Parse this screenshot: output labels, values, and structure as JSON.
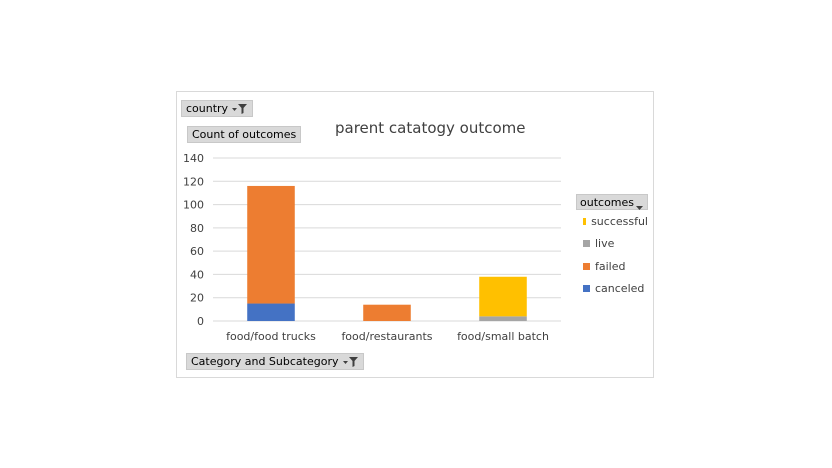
{
  "chart_data": {
    "type": "bar",
    "stacked": true,
    "title": "parent catatogy outcome",
    "xlabel": "",
    "ylabel": "",
    "categories": [
      "food/food trucks",
      "food/restaurants",
      "food/small batch"
    ],
    "ylim": [
      0,
      140
    ],
    "yticks": [
      0,
      20,
      40,
      60,
      80,
      100,
      120,
      140
    ],
    "grid": true,
    "legend_position": "right",
    "legend_title": "outcomes",
    "legend_order": [
      "successful",
      "live",
      "failed",
      "canceled"
    ],
    "series": [
      {
        "name": "canceled",
        "color": "#4472c4",
        "values": [
          15,
          0,
          0
        ]
      },
      {
        "name": "failed",
        "color": "#ed7d31",
        "values": [
          101,
          14,
          0
        ]
      },
      {
        "name": "live",
        "color": "#a5a5a5",
        "values": [
          0,
          0,
          4
        ]
      },
      {
        "name": "successful",
        "color": "#ffc000",
        "values": [
          0,
          0,
          34
        ]
      }
    ]
  },
  "fields": {
    "country": "country",
    "count_of_outcomes": "Count of outcomes",
    "category": "Category and Subcategory"
  },
  "icons": {
    "filter": "filter-icon",
    "dropdown": "dropdown-arrow-icon"
  }
}
